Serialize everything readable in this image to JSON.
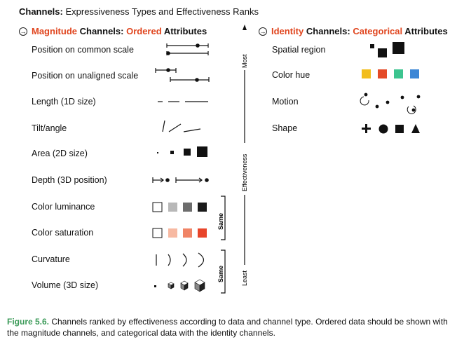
{
  "title": {
    "bold": "Channels:",
    "rest": "Expressiveness Types and Effectiveness Ranks"
  },
  "magnitude": {
    "head": {
      "p1": "Magnitude",
      "p2": "Channels:",
      "p3": "Ordered",
      "p4": "Attributes"
    },
    "rows": [
      "Position on common scale",
      "Position on unaligned scale",
      "Length (1D size)",
      "Tilt/angle",
      "Area (2D size)",
      "Depth (3D position)",
      "Color luminance",
      "Color saturation",
      "Curvature",
      "Volume (3D size)"
    ],
    "luminance_colors": [
      "#ffffff",
      "#b8b8b8",
      "#6d6d6d",
      "#1a1a1a"
    ],
    "saturation_colors": [
      "#ffffff",
      "#f7b9a2",
      "#f08466",
      "#e8452a"
    ],
    "same_label": "Same"
  },
  "identity": {
    "head": {
      "p1": "Identity",
      "p2": "Channels:",
      "p3": "Categorical",
      "p4": "Attributes"
    },
    "rows": [
      "Spatial region",
      "Color hue",
      "Motion",
      "Shape"
    ],
    "hue_colors": [
      "#f2bd1c",
      "#e44a27",
      "#3cc48f",
      "#3b86d6"
    ]
  },
  "effectiveness_axis": {
    "top": "Most",
    "middle": "Effectiveness",
    "bottom": "Least"
  },
  "caption": {
    "fig": "Figure 5.6.",
    "text": "Channels ranked by effectiveness according to data and channel type. Ordered data should be shown with the magnitude channels, and categorical data with the identity channels."
  },
  "accent_color": "#e0451e",
  "caption_color": "#3b9a58"
}
